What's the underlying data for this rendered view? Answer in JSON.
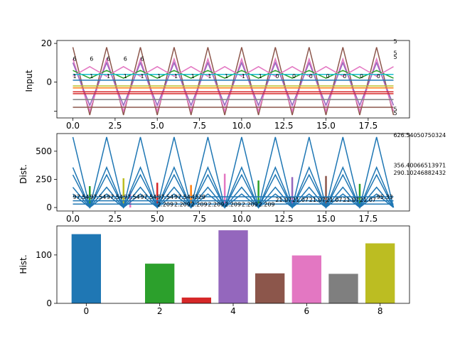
{
  "chart_data": [
    {
      "type": "line",
      "ylabel": "Input",
      "xlim": [
        -0.95,
        19.95
      ],
      "ylim": [
        -18.5,
        21.5
      ],
      "xticks": [
        0,
        2.5,
        5,
        7.5,
        10,
        12.5,
        15,
        17.5
      ],
      "xtick_labels": [
        "0.0",
        "2.5",
        "5.0",
        "7.5",
        "10.0",
        "12.5",
        "15.0",
        "17.5"
      ],
      "yticks": [
        -15,
        0,
        20
      ],
      "ytick_labels": [
        "",
        "0",
        "20"
      ],
      "x": [
        0,
        1,
        2,
        3,
        4,
        5,
        6,
        7,
        8,
        9,
        10,
        11,
        12,
        13,
        14,
        15,
        16,
        17,
        18,
        19
      ],
      "series": [
        {
          "color": "#8c564b",
          "values": [
            18,
            -17,
            18,
            -17,
            18,
            -17,
            18,
            -17,
            18,
            -17,
            18,
            -17,
            18,
            -17,
            18,
            -17,
            18,
            -17,
            18,
            -17
          ]
        },
        {
          "color": "#e377c2",
          "values": [
            12,
            -15,
            12,
            -15,
            12,
            -15,
            12,
            -15,
            12,
            -15,
            12,
            -15,
            12,
            -15,
            12,
            -15,
            12,
            -15,
            12,
            -15
          ]
        },
        {
          "color": "#9467bd",
          "values": [
            10,
            -12,
            10,
            -12,
            10,
            -12,
            10,
            -12,
            10,
            -12,
            10,
            -12,
            10,
            -12,
            10,
            -12,
            10,
            -12,
            10,
            -12
          ]
        },
        {
          "color": "#2ca02c",
          "values": [
            6,
            2,
            6,
            2,
            6,
            2,
            6,
            2,
            6,
            2,
            6,
            2,
            6,
            2,
            6,
            2,
            6,
            2,
            6,
            2
          ]
        },
        {
          "color": "#e377c2",
          "values": [
            3,
            8,
            3,
            8,
            3,
            8,
            3,
            8,
            3,
            8,
            3,
            8,
            3,
            8,
            3,
            8,
            3,
            8,
            3,
            8
          ]
        },
        {
          "color": "#d62728",
          "values": [
            -5,
            -5,
            -5,
            -5,
            -5,
            -5,
            -5,
            -5,
            -5,
            -5,
            -5,
            -5,
            -5,
            -5,
            -5,
            -5,
            -5,
            -5,
            -5,
            -5
          ]
        },
        {
          "color": "#d62728",
          "values": [
            -6,
            -6,
            -6,
            -6,
            -6,
            -6,
            -6,
            -6,
            -6,
            -6,
            -6,
            -6,
            -6,
            -6,
            -6,
            -6,
            -6,
            -6,
            -6,
            -6
          ]
        },
        {
          "color": "#bcbd22",
          "values": [
            -2,
            -2,
            -2,
            -2,
            -2,
            -2,
            -2,
            -2,
            -2,
            -2,
            -2,
            -2,
            -2,
            -2,
            -2,
            -2,
            -2,
            -2,
            -2,
            -2
          ]
        },
        {
          "color": "#1f77b4",
          "values": [
            1,
            1,
            1,
            1,
            1,
            1,
            1,
            1,
            1,
            1,
            1,
            1,
            1,
            1,
            1,
            1,
            1,
            1,
            1,
            1
          ]
        },
        {
          "color": "#7f7f7f",
          "values": [
            -9,
            -9,
            -9,
            -9,
            -9,
            -9,
            -9,
            -9,
            -9,
            -9,
            -9,
            -9,
            -9,
            -9,
            -9,
            -9,
            -9,
            -9,
            -9,
            -9
          ]
        },
        {
          "color": "#ff7f0e",
          "values": [
            -3,
            -3,
            -3,
            -3,
            -3,
            -3,
            -3,
            -3,
            -3,
            -3,
            -3,
            -3,
            -3,
            -3,
            -3,
            -3,
            -3,
            -3,
            -3,
            -3
          ]
        },
        {
          "color": "#17becf",
          "values": [
            4,
            4,
            4,
            4,
            4,
            4,
            4,
            4,
            4,
            4,
            4,
            4,
            4,
            4,
            4,
            4,
            4,
            4,
            4,
            4
          ]
        },
        {
          "color": "#8c564b",
          "values": [
            -13,
            -13,
            -13,
            -13,
            -13,
            -13,
            -13,
            -13,
            -13,
            -13,
            -13,
            -13,
            -13,
            -13,
            -13,
            -13,
            -13,
            -13,
            -13,
            -13
          ]
        }
      ],
      "point_labels": [
        {
          "x": 0,
          "y": 11,
          "text": "6"
        },
        {
          "x": 1,
          "y": 11,
          "text": "6"
        },
        {
          "x": 2,
          "y": 11,
          "text": "6"
        },
        {
          "x": 3,
          "y": 11,
          "text": "6"
        },
        {
          "x": 4,
          "y": 11,
          "text": "6"
        },
        {
          "x": 0,
          "y": 2,
          "text": "1"
        },
        {
          "x": 1,
          "y": 2,
          "text": "1"
        },
        {
          "x": 2,
          "y": 2,
          "text": "1"
        },
        {
          "x": 3,
          "y": 2,
          "text": "1"
        },
        {
          "x": 4,
          "y": 2,
          "text": "1"
        },
        {
          "x": 5,
          "y": 2,
          "text": "1"
        },
        {
          "x": 6,
          "y": 2,
          "text": "1"
        },
        {
          "x": 7,
          "y": 2,
          "text": "1"
        },
        {
          "x": 8,
          "y": 2,
          "text": "1"
        },
        {
          "x": 9,
          "y": 2,
          "text": "1"
        },
        {
          "x": 10,
          "y": 2,
          "text": "1"
        },
        {
          "x": 11,
          "y": 2,
          "text": "1"
        },
        {
          "x": 12,
          "y": 2,
          "text": "0"
        },
        {
          "x": 13,
          "y": 2,
          "text": "0"
        },
        {
          "x": 14,
          "y": 2,
          "text": "0"
        },
        {
          "x": 15,
          "y": 2,
          "text": "0"
        },
        {
          "x": 16,
          "y": 2,
          "text": "0"
        },
        {
          "x": 17,
          "y": 2,
          "text": "0"
        },
        {
          "x": 18,
          "y": 2,
          "text": "0"
        },
        {
          "x": 19,
          "y": 20,
          "text": "5"
        },
        {
          "x": 19,
          "y": 14,
          "text": "5"
        },
        {
          "x": 19,
          "y": 12,
          "text": "5"
        },
        {
          "x": 19,
          "y": -15,
          "text": "5"
        },
        {
          "x": 19,
          "y": -17,
          "text": "5"
        }
      ]
    },
    {
      "type": "line",
      "ylabel": "Dist.",
      "xlim": [
        -0.95,
        19.95
      ],
      "ylim": [
        -31,
        657
      ],
      "xticks": [
        0,
        2.5,
        5,
        7.5,
        10,
        12.5,
        15,
        17.5
      ],
      "xtick_labels": [
        "0.0",
        "2.5",
        "5.0",
        "7.5",
        "10.0",
        "12.5",
        "15.0",
        "17.5"
      ],
      "yticks": [
        0,
        250,
        500
      ],
      "ytick_labels": [
        "0",
        "250",
        "500"
      ],
      "x": [
        0,
        1,
        2,
        3,
        4,
        5,
        6,
        7,
        8,
        9,
        10,
        11,
        12,
        13,
        14,
        15,
        16,
        17,
        18,
        19
      ],
      "series": [
        {
          "color": "#1f77b4",
          "values": [
            626,
            0,
            626,
            0,
            626,
            0,
            626,
            0,
            626,
            0,
            626,
            0,
            626,
            0,
            626,
            0,
            626,
            0,
            626,
            0
          ]
        },
        {
          "color": "#1f77b4",
          "values": [
            356,
            0,
            356,
            0,
            356,
            0,
            356,
            0,
            356,
            0,
            356,
            0,
            356,
            0,
            356,
            0,
            356,
            0,
            356,
            0
          ]
        },
        {
          "color": "#1f77b4",
          "values": [
            290,
            0,
            290,
            0,
            290,
            0,
            290,
            0,
            290,
            0,
            290,
            0,
            290,
            0,
            290,
            0,
            290,
            0,
            290,
            0
          ]
        },
        {
          "color": "#1f77b4",
          "values": [
            180,
            0,
            180,
            0,
            180,
            0,
            180,
            0,
            180,
            0,
            180,
            0,
            180,
            0,
            180,
            0,
            180,
            0,
            180,
            0
          ]
        },
        {
          "color": "#1f77b4",
          "values": [
            120,
            0,
            120,
            0,
            120,
            0,
            120,
            0,
            120,
            0,
            120,
            0,
            120,
            0,
            120,
            0,
            120,
            0,
            120,
            0
          ]
        },
        {
          "color": "#1f77b4",
          "values": [
            95,
            95,
            95,
            95,
            95,
            95,
            95,
            95,
            95,
            95,
            95,
            95,
            95,
            95,
            95,
            95,
            95,
            95,
            95,
            95
          ]
        },
        {
          "color": "#1f77b4",
          "values": [
            60,
            60,
            60,
            60,
            60,
            60,
            60,
            60,
            60,
            60,
            60,
            60,
            60,
            60,
            60,
            60,
            60,
            60,
            60,
            60
          ]
        },
        {
          "color": "#1f77b4",
          "values": [
            30,
            30,
            30,
            30,
            30,
            30,
            30,
            30,
            30,
            30,
            30,
            30,
            30,
            30,
            30,
            30,
            30,
            30,
            30,
            30
          ]
        }
      ],
      "stems": [
        {
          "x": 1,
          "y": 190,
          "color": "#2ca02c"
        },
        {
          "x": 3,
          "y": 260,
          "color": "#bcbd22"
        },
        {
          "x": 3.4,
          "y": 150,
          "color": "#e377c2"
        },
        {
          "x": 5,
          "y": 220,
          "color": "#d62728"
        },
        {
          "x": 7,
          "y": 200,
          "color": "#ff7f0e"
        },
        {
          "x": 9,
          "y": 300,
          "color": "#e377c2"
        },
        {
          "x": 11,
          "y": 240,
          "color": "#2ca02c"
        },
        {
          "x": 13,
          "y": 270,
          "color": "#9467bd"
        },
        {
          "x": 15,
          "y": 280,
          "color": "#8c564b"
        },
        {
          "x": 17,
          "y": 210,
          "color": "#2ca02c"
        }
      ],
      "point_labels": [
        {
          "x": 0,
          "y": 75,
          "text": "97.54"
        },
        {
          "x": 1,
          "y": 75,
          "text": "97.54"
        },
        {
          "x": 2,
          "y": 75,
          "text": "97.54"
        },
        {
          "x": 3,
          "y": 75,
          "text": "97.54"
        },
        {
          "x": 4,
          "y": 75,
          "text": "97.54"
        },
        {
          "x": 5,
          "y": 75,
          "text": "97.54"
        },
        {
          "x": 6,
          "y": 75,
          "text": "97.54"
        },
        {
          "x": 7,
          "y": 75,
          "text": "4329"
        },
        {
          "x": 5,
          "y": 10,
          "text": "2.209"
        },
        {
          "x": 6,
          "y": 10,
          "text": "2.209"
        },
        {
          "x": 7,
          "y": 10,
          "text": "2.209"
        },
        {
          "x": 8,
          "y": 10,
          "text": "2.209"
        },
        {
          "x": 9,
          "y": 10,
          "text": "2.209"
        },
        {
          "x": 10,
          "y": 10,
          "text": "2.209"
        },
        {
          "x": 11,
          "y": 10,
          "text": "2.209"
        },
        {
          "x": 12,
          "y": 50,
          "text": "21.07"
        },
        {
          "x": 13,
          "y": 50,
          "text": "21.07"
        },
        {
          "x": 14,
          "y": 50,
          "text": "21.07"
        },
        {
          "x": 15,
          "y": 50,
          "text": "21.07"
        },
        {
          "x": 16,
          "y": 50,
          "text": "21.07"
        },
        {
          "x": 17,
          "y": 50,
          "text": "21.07"
        },
        {
          "x": 18,
          "y": 75,
          "text": "95.33"
        },
        {
          "x": 19,
          "y": 626,
          "text": "626.54050750324"
        },
        {
          "x": 19,
          "y": 356,
          "text": "356.40066513971"
        },
        {
          "x": 19,
          "y": 290,
          "text": "290.10246882432"
        }
      ]
    },
    {
      "type": "bar",
      "ylabel": "Hist.",
      "categories": [
        0,
        1,
        2,
        3,
        4,
        5,
        6,
        7,
        8
      ],
      "values": [
        143,
        0,
        82,
        12,
        151,
        62,
        99,
        61,
        124
      ],
      "colors": [
        "#1f77b4",
        "#ff7f0e",
        "#2ca02c",
        "#d62728",
        "#9467bd",
        "#8c564b",
        "#e377c2",
        "#7f7f7f",
        "#bcbd22"
      ],
      "xlim": [
        -0.8,
        8.8
      ],
      "ylim": [
        0,
        160
      ],
      "xticks": [
        0,
        2,
        4,
        6,
        8
      ],
      "xtick_labels": [
        "0",
        "2",
        "4",
        "6",
        "8"
      ],
      "yticks": [
        0,
        100
      ],
      "ytick_labels": [
        "0",
        "100"
      ]
    }
  ]
}
